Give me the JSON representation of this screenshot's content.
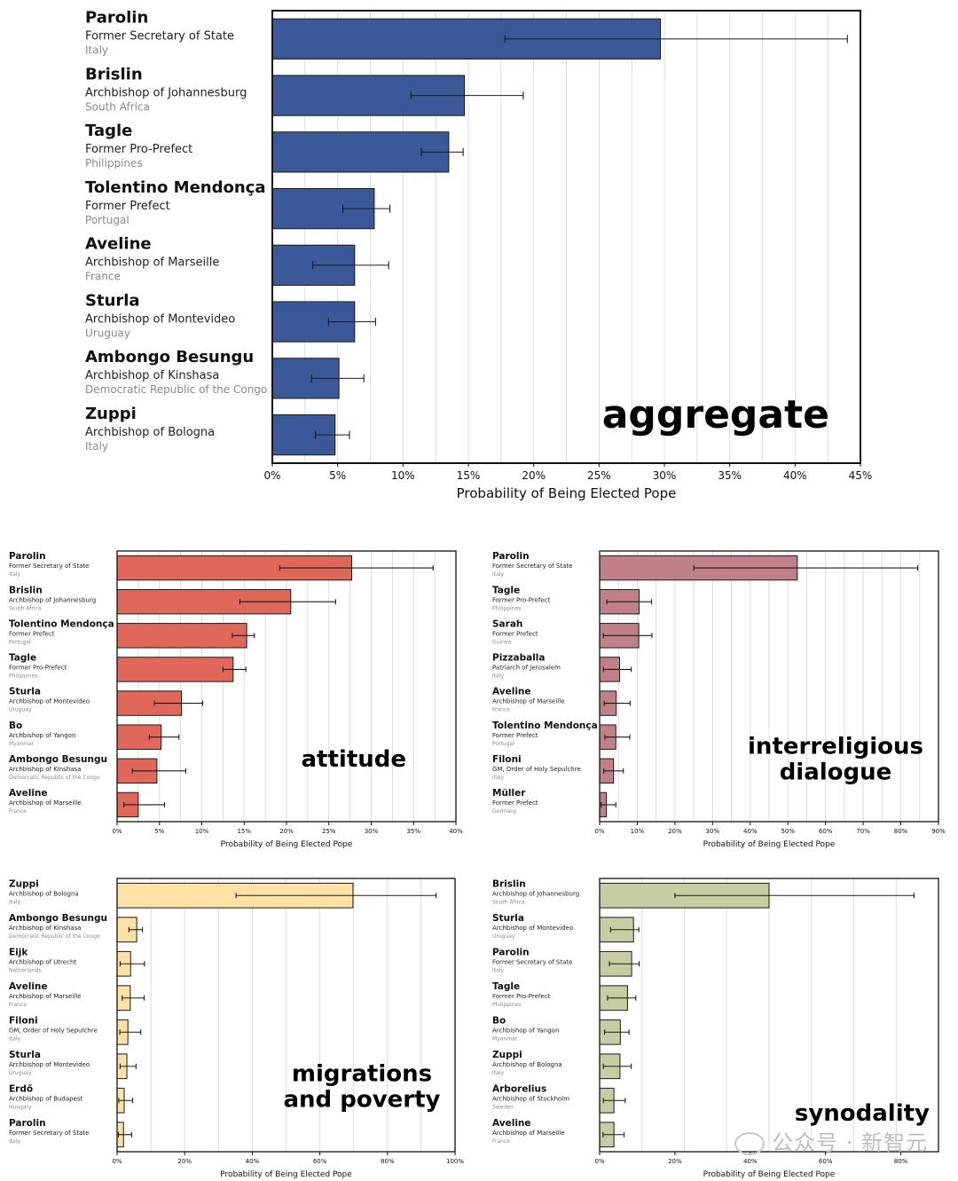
{
  "colors": {
    "aggregate": "#3b5998",
    "attitude": "#e0685a",
    "interreligious_dialogue": "#c0808a",
    "migrations_and_poverty": "#ffe0a5",
    "synodality": "#c8cca3",
    "grid": "#d4d4d4",
    "country_text": "#8a8a8a"
  },
  "watermark": "公众号 · 新智元",
  "chart_data": [
    {
      "type": "bar",
      "orientation": "horizontal",
      "panel_label": "aggregate",
      "xlabel": "Probability of Being Elected Pope",
      "xlim": [
        0,
        45
      ],
      "xticks": [
        0,
        5,
        10,
        15,
        20,
        25,
        30,
        35,
        40,
        45
      ],
      "xtick_labels": [
        "0%",
        "5%",
        "10%",
        "15%",
        "20%",
        "25%",
        "30%",
        "35%",
        "40%",
        "45%"
      ],
      "categories": [
        {
          "name": "Parolin",
          "title": "Former Secretary of State",
          "country": "Italy"
        },
        {
          "name": "Brislin",
          "title": "Archbishop of Johannesburg",
          "country": "South Africa"
        },
        {
          "name": "Tagle",
          "title": "Former Pro-Prefect",
          "country": "Philippines"
        },
        {
          "name": "Tolentino Mendonça",
          "title": "Former Prefect",
          "country": "Portugal"
        },
        {
          "name": "Aveline",
          "title": "Archbishop of Marseille",
          "country": "France"
        },
        {
          "name": "Sturla",
          "title": "Archbishop of Montevideo",
          "country": "Uruguay"
        },
        {
          "name": "Ambongo Besungu",
          "title": "Archbishop of Kinshasa",
          "country": "Democratic Republic of the Congo"
        },
        {
          "name": "Zuppi",
          "title": "Archbishop of Bologna",
          "country": "Italy"
        }
      ],
      "values": [
        29.7,
        14.7,
        13.5,
        7.8,
        6.3,
        6.3,
        5.1,
        4.8
      ],
      "error_low": [
        17.8,
        10.6,
        11.4,
        5.4,
        3.1,
        4.3,
        3.0,
        3.3
      ],
      "error_high": [
        44.0,
        19.2,
        14.6,
        9.0,
        8.9,
        7.9,
        7.0,
        5.9
      ]
    },
    {
      "type": "bar",
      "orientation": "horizontal",
      "panel_label": "attitude",
      "xlabel": "Probability of Being Elected Pope",
      "xlim": [
        0,
        40
      ],
      "xticks": [
        0,
        5,
        10,
        15,
        20,
        25,
        30,
        35,
        40
      ],
      "xtick_labels": [
        "0%",
        "5%",
        "10%",
        "15%",
        "20%",
        "25%",
        "30%",
        "35%",
        "40%"
      ],
      "categories": [
        {
          "name": "Parolin",
          "title": "Former Secretary of State",
          "country": "Italy"
        },
        {
          "name": "Brislin",
          "title": "Archbishop of Johannesburg",
          "country": "South Africa"
        },
        {
          "name": "Tolentino Mendonça",
          "title": "Former Prefect",
          "country": "Portugal"
        },
        {
          "name": "Tagle",
          "title": "Former Pro-Prefect",
          "country": "Philippines"
        },
        {
          "name": "Sturla",
          "title": "Archbishop of Montevideo",
          "country": "Uruguay"
        },
        {
          "name": "Bo",
          "title": "Archbishop of Yangon",
          "country": "Myanmar"
        },
        {
          "name": "Ambongo Besungu",
          "title": "Archbishop of Kinshasa",
          "country": "Democratic Republic of the Congo"
        },
        {
          "name": "Aveline",
          "title": "Archbishop of Marseille",
          "country": "France"
        }
      ],
      "values": [
        27.7,
        20.5,
        15.3,
        13.7,
        7.6,
        5.2,
        4.7,
        2.5
      ],
      "error_low": [
        19.2,
        14.5,
        13.6,
        12.5,
        4.4,
        3.8,
        1.8,
        0.8
      ],
      "error_high": [
        37.3,
        25.8,
        16.2,
        15.2,
        10.1,
        7.3,
        8.1,
        5.6
      ]
    },
    {
      "type": "bar",
      "orientation": "horizontal",
      "panel_label": "interreligious dialogue",
      "xlabel": "Probability of Being Elected Pope",
      "xlim": [
        0,
        90
      ],
      "xticks": [
        0,
        10,
        20,
        30,
        40,
        50,
        60,
        70,
        80,
        90
      ],
      "xtick_labels": [
        "0%",
        "10%",
        "20%",
        "30%",
        "40%",
        "50%",
        "60%",
        "70%",
        "80%",
        "90%"
      ],
      "categories": [
        {
          "name": "Parolin",
          "title": "Former Secretary of State",
          "country": "Italy"
        },
        {
          "name": "Tagle",
          "title": "Former Pro-Prefect",
          "country": "Philippines"
        },
        {
          "name": "Sarah",
          "title": "Former Prefect",
          "country": "Guinea"
        },
        {
          "name": "Pizzaballa",
          "title": "Patriarch of Jerusalem",
          "country": "Italy"
        },
        {
          "name": "Aveline",
          "title": "Archbishop of Marseille",
          "country": "France"
        },
        {
          "name": "Tolentino Mendonça",
          "title": "Former Prefect",
          "country": "Portugal"
        },
        {
          "name": "Filoni",
          "title": "GM, Order of Holy Sepulchre",
          "country": "Italy"
        },
        {
          "name": "Müller",
          "title": "Former Prefect",
          "country": "Germany"
        }
      ],
      "values": [
        52.5,
        10.5,
        10.4,
        5.3,
        4.4,
        4.3,
        3.7,
        1.8
      ],
      "error_low": [
        25.0,
        1.9,
        1.0,
        1.0,
        1.2,
        1.4,
        1.1,
        0.4
      ],
      "error_high": [
        84.5,
        13.8,
        13.9,
        8.4,
        8.1,
        8.0,
        6.3,
        4.3
      ]
    },
    {
      "type": "bar",
      "orientation": "horizontal",
      "panel_label": "migrations and poverty",
      "xlabel": "Probability of Being Elected Pope",
      "xlim": [
        0,
        100
      ],
      "xticks": [
        0,
        20,
        40,
        60,
        80,
        100
      ],
      "xtick_labels": [
        "0%",
        "20%",
        "40%",
        "60%",
        "80%",
        "100%"
      ],
      "categories": [
        {
          "name": "Zuppi",
          "title": "Archbishop of Bologna",
          "country": "Italy"
        },
        {
          "name": "Ambongo Besungu",
          "title": "Archbishop of Kinshasa",
          "country": "Democratic Republic of the Congo"
        },
        {
          "name": "Eijk",
          "title": "Archbishop of Utrecht",
          "country": "Netherlands"
        },
        {
          "name": "Aveline",
          "title": "Archbishop of Marseille",
          "country": "France"
        },
        {
          "name": "Filoni",
          "title": "GM, Order of Holy Sepulchre",
          "country": "Italy"
        },
        {
          "name": "Sturla",
          "title": "Archbishop of Montevideo",
          "country": "Uruguay"
        },
        {
          "name": "Erdő",
          "title": "Archbishop of Budapest",
          "country": "Hungary"
        },
        {
          "name": "Parolin",
          "title": "Former Secretary of State",
          "country": "Italy"
        }
      ],
      "values": [
        69.8,
        5.8,
        4.0,
        3.9,
        3.2,
        2.9,
        2.1,
        1.9
      ],
      "error_low": [
        35.2,
        3.5,
        0.9,
        1.5,
        0.8,
        0.9,
        0.5,
        0.4
      ],
      "error_high": [
        94.4,
        7.5,
        8.1,
        8.0,
        7.0,
        5.6,
        4.6,
        4.3
      ]
    },
    {
      "type": "bar",
      "orientation": "horizontal",
      "panel_label": "synodality",
      "xlabel": "Probability of Being Elected Pope",
      "xlim": [
        0,
        90
      ],
      "xticks": [
        0,
        20,
        40,
        60,
        80
      ],
      "xtick_labels": [
        "0%",
        "20%",
        "40%",
        "60%",
        "80%"
      ],
      "categories": [
        {
          "name": "Brislin",
          "title": "Archbishop of Johannesburg",
          "country": "South Africa"
        },
        {
          "name": "Sturla",
          "title": "Archbishop of Montevideo",
          "country": "Uruguay"
        },
        {
          "name": "Parolin",
          "title": "Former Secretary of State",
          "country": "Italy"
        },
        {
          "name": "Tagle",
          "title": "Former Pro-Prefect",
          "country": "Philippines"
        },
        {
          "name": "Bo",
          "title": "Archbishop of Yangon",
          "country": "Myanmar"
        },
        {
          "name": "Zuppi",
          "title": "Archbishop of Bologna",
          "country": "Italy"
        },
        {
          "name": "Arborelius",
          "title": "Archbishop of Stockholm",
          "country": "Sweden"
        },
        {
          "name": "Aveline",
          "title": "Archbishop of Marseille",
          "country": "France"
        }
      ],
      "values": [
        45.0,
        9.0,
        8.5,
        7.4,
        5.5,
        5.4,
        3.8,
        3.8
      ],
      "error_low": [
        20.0,
        2.9,
        2.6,
        2.1,
        1.3,
        1.0,
        1.0,
        0.9
      ],
      "error_high": [
        83.5,
        10.4,
        10.5,
        9.6,
        7.8,
        8.4,
        6.8,
        6.5
      ]
    }
  ]
}
